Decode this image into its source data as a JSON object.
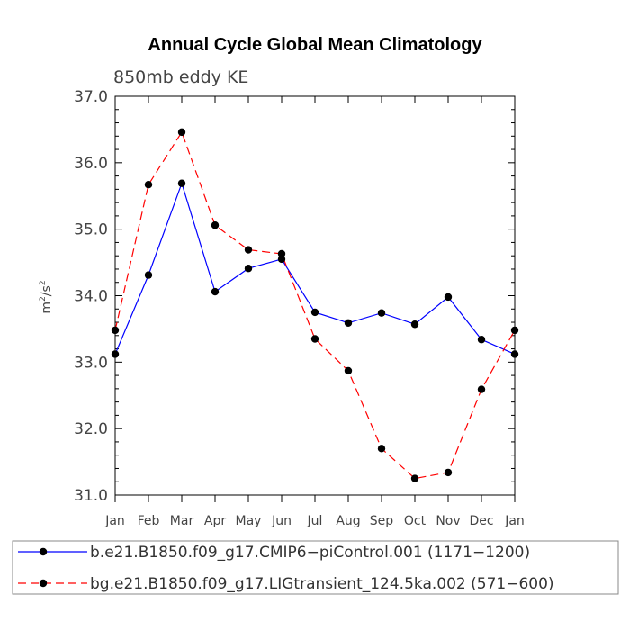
{
  "chart_data": {
    "type": "line",
    "title": "Annual Cycle Global Mean Climatology",
    "subtitle": "850mb eddy KE",
    "ylabel_base": "m",
    "ylabel_sup1": "2",
    "ylabel_mid": "/s",
    "ylabel_sup2": "2",
    "xlabel": "",
    "categories": [
      "Jan",
      "Feb",
      "Mar",
      "Apr",
      "May",
      "Jun",
      "Jul",
      "Aug",
      "Sep",
      "Oct",
      "Nov",
      "Dec",
      "Jan"
    ],
    "ylim": [
      31.0,
      37.0
    ],
    "yticks": [
      "31.0",
      "32.0",
      "33.0",
      "34.0",
      "35.0",
      "36.0",
      "37.0"
    ],
    "grid": false,
    "legend_position": "bottom",
    "series": [
      {
        "name": "b.e21.B1850.f09_g17.CMIP6−piControl.001 (1171−1200)",
        "color": "#0000ff",
        "dash": "solid",
        "values": [
          33.12,
          34.31,
          35.69,
          34.06,
          34.41,
          34.55,
          33.75,
          33.59,
          33.74,
          33.57,
          33.98,
          33.34,
          33.12
        ]
      },
      {
        "name": "bg.e21.B1850.f09_g17.LIGtransient_124.5ka.002 (571−600)",
        "color": "#ff0000",
        "dash": "dashed",
        "values": [
          33.48,
          35.67,
          36.46,
          35.06,
          34.69,
          34.63,
          33.35,
          32.87,
          31.7,
          31.25,
          31.34,
          32.59,
          33.48
        ]
      }
    ]
  }
}
